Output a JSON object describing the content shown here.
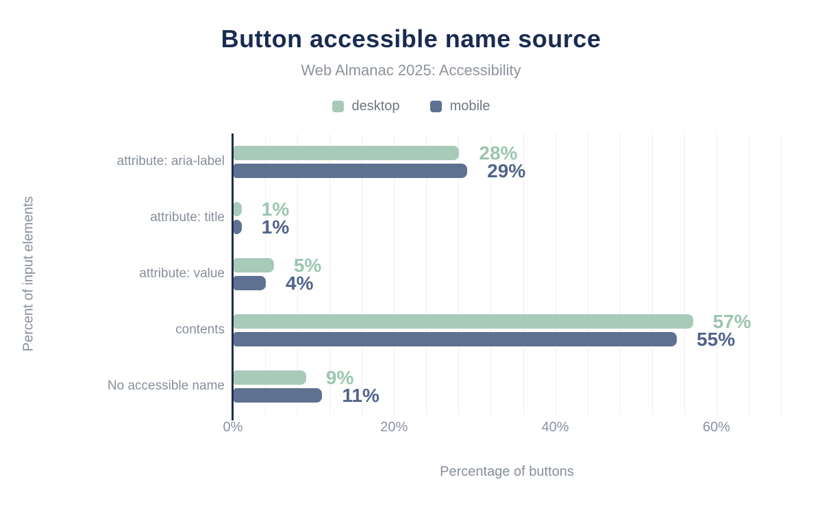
{
  "header": {
    "title": "Button accessible name source",
    "subtitle": "Web Almanac 2025: Accessibility"
  },
  "chart_data": {
    "type": "bar",
    "orientation": "horizontal",
    "title": "Button accessible name source",
    "subtitle": "Web Almanac 2025: Accessibility",
    "categories": [
      "attribute: aria-label",
      "attribute: title",
      "attribute: value",
      "contents",
      "No accessible name"
    ],
    "series": [
      {
        "name": "desktop",
        "values": [
          28,
          1,
          5,
          57,
          9
        ],
        "labels": [
          "28%",
          "1%",
          "5%",
          "57%",
          "9%"
        ],
        "color": "#a8cab8",
        "label_color": "#9cc5b0"
      },
      {
        "name": "mobile",
        "values": [
          29,
          1,
          4,
          55,
          11
        ],
        "labels": [
          "29%",
          "1%",
          "4%",
          "55%",
          "11%"
        ],
        "color": "#5f7190",
        "label_color": "#51648a"
      }
    ],
    "xlabel": "Percentage of buttons",
    "ylabel": "Percent of input elements",
    "xlim": [
      0,
      68
    ],
    "x_ticks": [
      {
        "value": 0,
        "label": "0%"
      },
      {
        "value": 20,
        "label": "20%"
      },
      {
        "value": 40,
        "label": "40%"
      },
      {
        "value": 60,
        "label": "60%"
      }
    ],
    "grid": true,
    "grid_step": 4,
    "legend_position": "top"
  },
  "style": {
    "title_color": "#1a2b52",
    "subtitle_color": "#8d939c",
    "secondary_text_color": "#878f9c",
    "legend_text_color": "#6e7681",
    "axis_color": "#1e2c4d",
    "grid_color": "#eeeeee",
    "background": "#ffffff"
  }
}
